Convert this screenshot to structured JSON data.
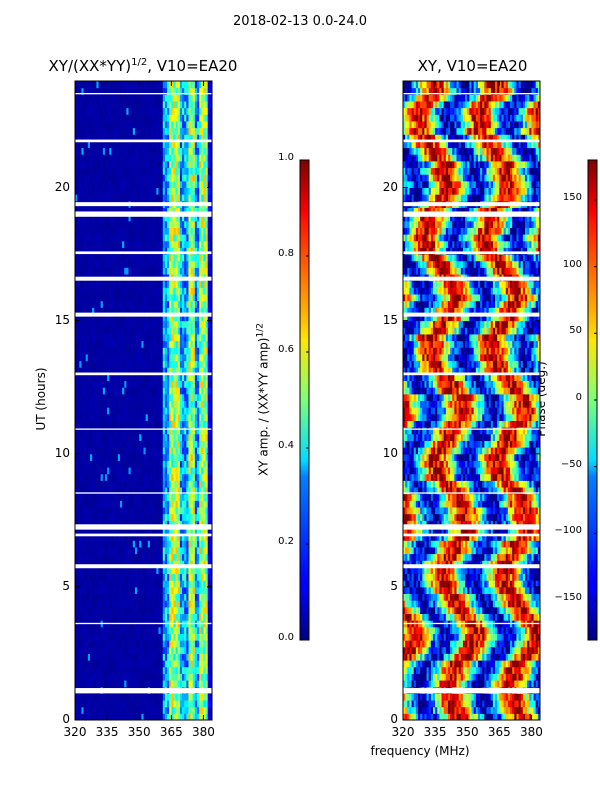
{
  "figure": {
    "suptitle": "2018-02-13 0.0-24.0",
    "xlabel": "frequency (MHz)"
  },
  "chart_data": [
    {
      "type": "heatmap",
      "title": "XY/(XX*YY)^1/2, V10=EA20",
      "title_main": "XY/(XX*YY)",
      "title_sup": "1/2",
      "title_tail": ", V10=EA20",
      "xlabel": "",
      "ylabel": "UT (hours)",
      "xlim": [
        320,
        384
      ],
      "ylim": [
        0,
        24
      ],
      "xticks": [
        320,
        335,
        350,
        365,
        380
      ],
      "yticks": [
        0,
        5,
        10,
        15,
        20
      ],
      "colorbar": {
        "label": "XY amp. / (XX*YY amp)",
        "label_sup": "1/2",
        "range": [
          0.0,
          1.0
        ],
        "ticks": [
          "0.0",
          "0.2",
          "0.4",
          "0.6",
          "0.8",
          "1.0"
        ],
        "tick_values": [
          0.0,
          0.2,
          0.4,
          0.6,
          0.8,
          1.0
        ],
        "colormap": "jet"
      },
      "description": "Normalized XY amplitude vs frequency (MHz) and UT (hours); near 0 below ~360 MHz, ~0.2-0.7 between 360 and 382 MHz"
    },
    {
      "type": "heatmap",
      "title": "XY, V10=EA20",
      "xlabel": "frequency (MHz)",
      "ylabel": "",
      "xlim": [
        320,
        384
      ],
      "ylim": [
        0,
        24
      ],
      "xticks": [
        320,
        335,
        350,
        365,
        380
      ],
      "yticks": [
        0,
        5,
        10,
        15,
        20
      ],
      "colorbar": {
        "label": "Phase (deg.)",
        "range": [
          -180,
          180
        ],
        "ticks": [
          "−150",
          "−100",
          "−50",
          "0",
          "50",
          "100",
          "150"
        ],
        "tick_values": [
          -150,
          -100,
          -50,
          0,
          50,
          100,
          150
        ],
        "colormap": "jet"
      },
      "description": "XY phase (deg) vs frequency (MHz) and UT (hours); full -180 to 180 range with fringe structure"
    }
  ],
  "gaps_hours": [
    [
      1.0,
      1.2
    ],
    [
      5.7,
      5.85
    ],
    [
      6.9,
      7.0
    ],
    [
      7.15,
      7.35
    ],
    [
      12.95,
      13.05
    ],
    [
      15.15,
      15.3
    ],
    [
      16.5,
      16.65
    ],
    [
      17.5,
      17.6
    ],
    [
      18.9,
      19.1
    ],
    [
      19.3,
      19.45
    ],
    [
      3.6,
      3.65
    ],
    [
      8.5,
      8.55
    ],
    [
      10.9,
      10.95
    ],
    [
      21.7,
      21.8
    ],
    [
      23.5,
      23.55
    ]
  ],
  "colors": {
    "background": "#ffffff",
    "axis": "#000000",
    "gap": "#ffffff"
  }
}
